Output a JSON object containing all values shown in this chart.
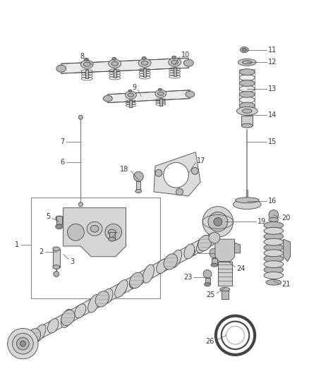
{
  "background_color": "#ffffff",
  "fig_width": 4.38,
  "fig_height": 5.33,
  "dpi": 100,
  "line_color": "#555555",
  "part_color": "#444444",
  "label_color": "#333333",
  "label_fontsize": 7.0,
  "callout_lw": 0.5,
  "part_lw": 0.6,
  "gray_fill": "#d8d8d8",
  "gray_mid": "#b8b8b8",
  "gray_dark": "#909090",
  "gray_light": "#ebebeb"
}
